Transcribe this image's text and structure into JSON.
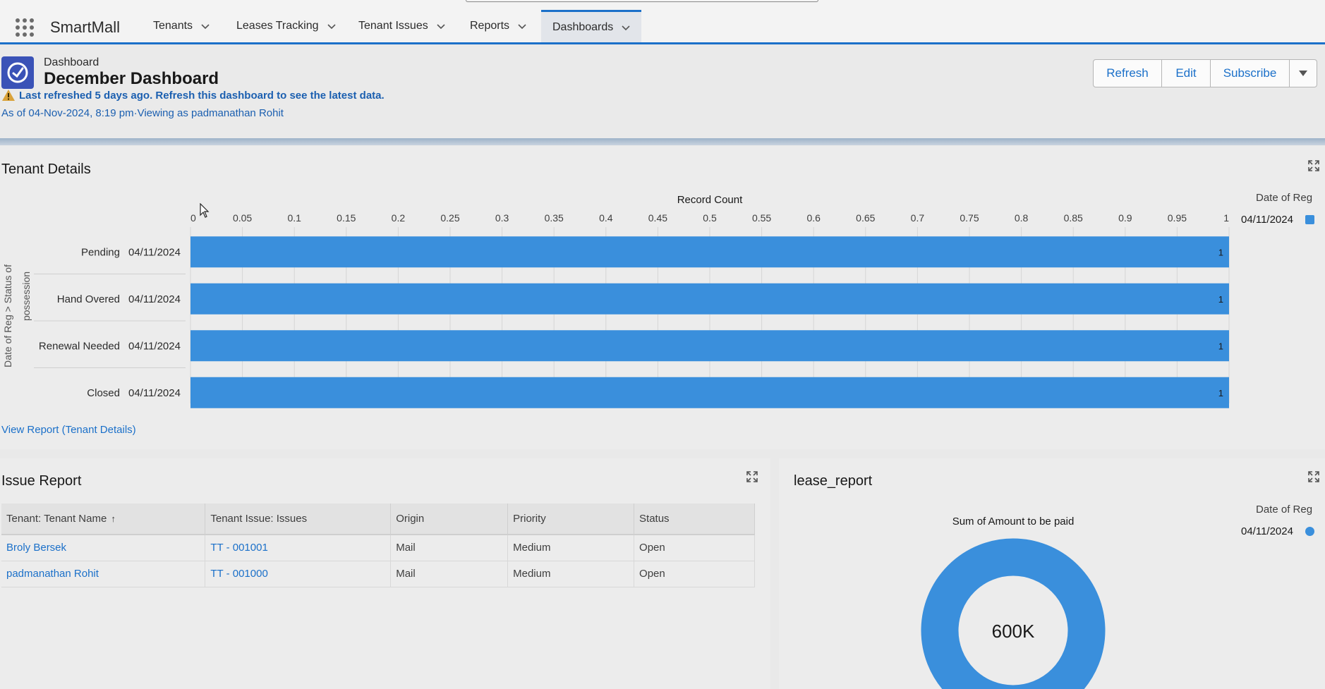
{
  "nav": {
    "app_name": "SmartMall",
    "items": [
      {
        "label": "Tenants"
      },
      {
        "label": "Leases Tracking"
      },
      {
        "label": "Tenant Issues"
      },
      {
        "label": "Reports"
      },
      {
        "label": "Dashboards"
      }
    ]
  },
  "header": {
    "breadcrumb": "Dashboard",
    "title": "December Dashboard",
    "warning": "Last refreshed 5 days ago. Refresh this dashboard to see the latest data.",
    "as_of": "As of 04-Nov-2024, 8:19 pm·Viewing as padmanathan Rohit",
    "buttons": {
      "refresh": "Refresh",
      "edit": "Edit",
      "subscribe": "Subscribe"
    }
  },
  "tenant_details": {
    "title": "Tenant Details",
    "view_report": "View Report (Tenant Details)",
    "legend_title": "Date of Reg",
    "legend_item": "04/11/2024",
    "y_axis_title": "Date of Reg > Status of possession",
    "colors": {
      "bar": "#3a8fdc"
    }
  },
  "chart_data": {
    "type": "bar",
    "orientation": "horizontal",
    "xlabel": "Record Count",
    "ylabel": "Date of Reg > Status of possession",
    "xlim": [
      0,
      1
    ],
    "x_ticks": [
      "0",
      "0.05",
      "0.1",
      "0.15",
      "0.2",
      "0.25",
      "0.3",
      "0.35",
      "0.4",
      "0.45",
      "0.5",
      "0.55",
      "0.6",
      "0.65",
      "0.7",
      "0.75",
      "0.8",
      "0.85",
      "0.9",
      "0.95",
      "1"
    ],
    "categories": [
      {
        "status": "Pending",
        "date": "04/11/2024"
      },
      {
        "status": "Hand Overed",
        "date": "04/11/2024"
      },
      {
        "status": "Renewal Needed",
        "date": "04/11/2024"
      },
      {
        "status": "Closed",
        "date": "04/11/2024"
      }
    ],
    "values": [
      1,
      1,
      1,
      1
    ],
    "legend": {
      "title": "Date of Reg",
      "entries": [
        "04/11/2024"
      ],
      "placement": "right"
    },
    "grid": true
  },
  "issue_report": {
    "title": "Issue Report",
    "columns": [
      "Tenant: Tenant Name",
      "Tenant Issue: Issues",
      "Origin",
      "Priority",
      "Status"
    ],
    "rows": [
      [
        "Broly Bersek",
        "TT - 001001",
        "Mail",
        "Medium",
        "Open"
      ],
      [
        "padmanathan Rohit",
        "TT - 001000",
        "Mail",
        "Medium",
        "Open"
      ]
    ]
  },
  "lease_report": {
    "title": "lease_report",
    "chart_title": "Sum of Amount to be paid",
    "center_value": "600K",
    "legend_title": "Date of Reg",
    "legend_item": "04/11/2024",
    "colors": {
      "donut": "#3a8fdc"
    }
  }
}
